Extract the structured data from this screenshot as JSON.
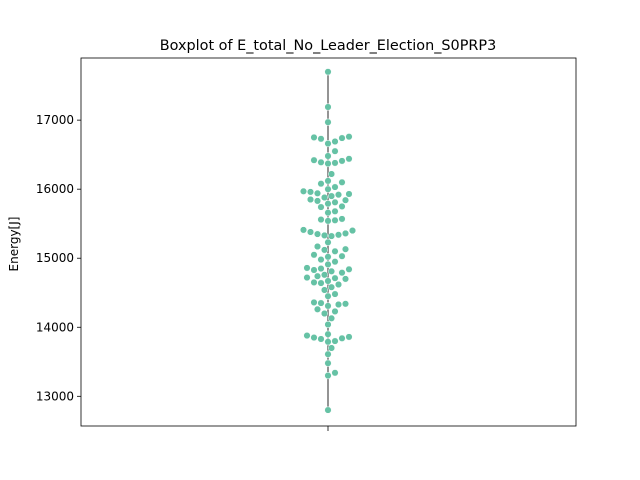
{
  "chart_data": {
    "type": "scatter",
    "subtype": "swarm over boxplot",
    "title": "Boxplot of E_total_No_Leader_Election_S0PRP3",
    "xlabel": "",
    "ylabel": "Energy[J]",
    "ylim": [
      12570,
      17900
    ],
    "yticks": [
      "13000",
      "14000",
      "15000",
      "16000",
      "17000"
    ],
    "ytick_values": [
      13000,
      14000,
      15000,
      16000,
      17000
    ],
    "grid": false,
    "legend": "none",
    "colors": {
      "points": "#66c2a5",
      "whisker": "#5a5a5a",
      "axes": "#000000"
    },
    "whisker_range": [
      12800,
      17700
    ],
    "series": [
      {
        "values": [
          12800,
          13300,
          13340,
          13480,
          13610,
          13700,
          13790,
          13800,
          13830,
          13840,
          13850,
          13860,
          13880,
          13900,
          14040,
          14130,
          14200,
          14230,
          14260,
          14310,
          14330,
          14340,
          14350,
          14360,
          14450,
          14480,
          14540,
          14580,
          14620,
          14640,
          14650,
          14670,
          14700,
          14710,
          14720,
          14740,
          14760,
          14790,
          14810,
          14830,
          14840,
          14850,
          14860,
          14910,
          14950,
          14980,
          15020,
          15030,
          15050,
          15100,
          15120,
          15130,
          15170,
          15230,
          15320,
          15330,
          15340,
          15350,
          15360,
          15380,
          15400,
          15410,
          15540,
          15550,
          15560,
          15570,
          15660,
          15680,
          15740,
          15750,
          15790,
          15810,
          15830,
          15840,
          15850,
          15880,
          15900,
          15920,
          15930,
          15940,
          15960,
          15970,
          16000,
          16030,
          16080,
          16100,
          16120,
          16220,
          16370,
          16380,
          16390,
          16410,
          16420,
          16440,
          16480,
          16550,
          16660,
          16690,
          16730,
          16740,
          16750,
          16760,
          16970,
          17190,
          17700
        ]
      }
    ]
  }
}
